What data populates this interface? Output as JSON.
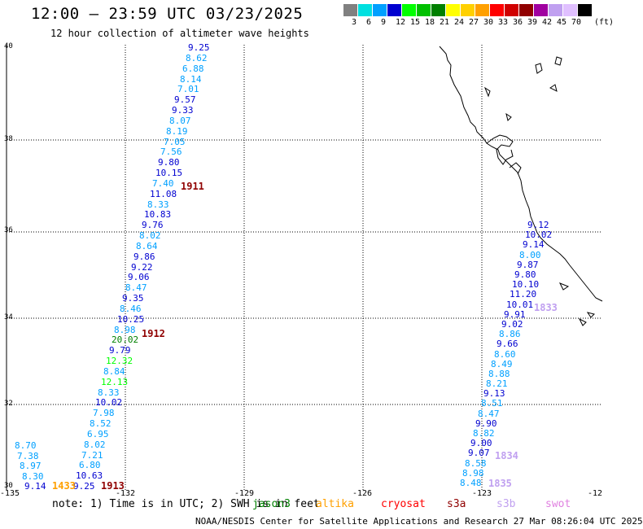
{
  "header": {
    "title": "12:00 – 23:59 UTC 03/23/2025",
    "subtitle": "12 hour collection of altimeter wave heights"
  },
  "colorbar": {
    "colors": [
      "#808080",
      "#00e0e0",
      "#00a0ff",
      "#0000d0",
      "#00ff00",
      "#00c000",
      "#008000",
      "#ffff00",
      "#ffd000",
      "#ffa000",
      "#ff0000",
      "#d00000",
      "#900000",
      "#a000a0",
      "#c0a0f0",
      "#e0c0ff",
      "#000000"
    ],
    "labels": [
      "3",
      "6",
      "9",
      "12",
      "15",
      "18",
      "21",
      "24",
      "27",
      "30",
      "33",
      "36",
      "39",
      "42",
      "45",
      "70",
      "(ft)"
    ]
  },
  "axes": {
    "lat_labels": [
      "40",
      "38",
      "36",
      "34",
      "32",
      "30"
    ],
    "lon_labels": [
      "-135",
      "-132",
      "-129",
      "-126",
      "-123",
      "-12"
    ]
  },
  "tracks": {
    "track1": {
      "values": [
        {
          "v": "9.25",
          "c": "#0000d0"
        },
        {
          "v": "8.62",
          "c": "#00a0ff"
        },
        {
          "v": "6.88",
          "c": "#00a0ff"
        },
        {
          "v": "8.14",
          "c": "#00a0ff"
        },
        {
          "v": "7.01",
          "c": "#00a0ff"
        },
        {
          "v": "9.57",
          "c": "#0000d0"
        },
        {
          "v": "9.33",
          "c": "#0000d0"
        },
        {
          "v": "8.07",
          "c": "#00a0ff"
        },
        {
          "v": "8.19",
          "c": "#00a0ff"
        },
        {
          "v": "7.05",
          "c": "#00a0ff"
        },
        {
          "v": "7.56",
          "c": "#00a0ff"
        },
        {
          "v": "9.80",
          "c": "#0000d0"
        },
        {
          "v": "10.15",
          "c": "#0000d0"
        },
        {
          "v": "7.40",
          "c": "#00a0ff"
        },
        {
          "v": "11.08",
          "c": "#0000d0"
        },
        {
          "v": "8.33",
          "c": "#00a0ff"
        },
        {
          "v": "10.83",
          "c": "#0000d0"
        },
        {
          "v": "9.76",
          "c": "#0000d0"
        },
        {
          "v": "8.02",
          "c": "#00a0ff"
        },
        {
          "v": "8.64",
          "c": "#00a0ff"
        },
        {
          "v": "9.86",
          "c": "#0000d0"
        },
        {
          "v": "9.22",
          "c": "#0000d0"
        },
        {
          "v": "9.06",
          "c": "#0000d0"
        },
        {
          "v": "8.47",
          "c": "#00a0ff"
        },
        {
          "v": "9.35",
          "c": "#0000d0"
        },
        {
          "v": "8.46",
          "c": "#00a0ff"
        },
        {
          "v": "10.25",
          "c": "#0000d0"
        },
        {
          "v": "8.98",
          "c": "#00a0ff"
        },
        {
          "v": "20.02",
          "c": "#008000"
        },
        {
          "v": "9.79",
          "c": "#0000d0"
        },
        {
          "v": "12.32",
          "c": "#00ff00"
        },
        {
          "v": "8.84",
          "c": "#00a0ff"
        },
        {
          "v": "12.13",
          "c": "#00ff00"
        },
        {
          "v": "8.33",
          "c": "#00a0ff"
        },
        {
          "v": "10.02",
          "c": "#0000d0"
        },
        {
          "v": "7.98",
          "c": "#00a0ff"
        },
        {
          "v": "8.52",
          "c": "#00a0ff"
        },
        {
          "v": "6.95",
          "c": "#00a0ff"
        },
        {
          "v": "8.02",
          "c": "#00a0ff"
        },
        {
          "v": "7.21",
          "c": "#00a0ff"
        },
        {
          "v": "6.80",
          "c": "#00a0ff"
        },
        {
          "v": "10.63",
          "c": "#0000d0"
        },
        {
          "v": "9.25",
          "c": "#0000d0"
        }
      ]
    },
    "track2": {
      "values": [
        {
          "v": "8.70",
          "c": "#00a0ff"
        },
        {
          "v": "7.38",
          "c": "#00a0ff"
        },
        {
          "v": "8.97",
          "c": "#00a0ff"
        },
        {
          "v": "8.30",
          "c": "#00a0ff"
        },
        {
          "v": "9.14",
          "c": "#0000d0"
        }
      ]
    },
    "track3": {
      "values": [
        {
          "v": "9.12",
          "c": "#0000d0"
        },
        {
          "v": "10.02",
          "c": "#0000d0"
        },
        {
          "v": "9.14",
          "c": "#0000d0"
        },
        {
          "v": "8.00",
          "c": "#00a0ff"
        },
        {
          "v": "9.87",
          "c": "#0000d0"
        },
        {
          "v": "9.80",
          "c": "#0000d0"
        },
        {
          "v": "10.10",
          "c": "#0000d0"
        },
        {
          "v": "11.20",
          "c": "#0000d0"
        },
        {
          "v": "10.01",
          "c": "#0000d0"
        },
        {
          "v": "9.91",
          "c": "#0000d0"
        },
        {
          "v": "9.02",
          "c": "#0000d0"
        },
        {
          "v": "8.86",
          "c": "#00a0ff"
        },
        {
          "v": "9.66",
          "c": "#0000d0"
        },
        {
          "v": "8.60",
          "c": "#00a0ff"
        },
        {
          "v": "8.49",
          "c": "#00a0ff"
        },
        {
          "v": "8.88",
          "c": "#00a0ff"
        },
        {
          "v": "8.21",
          "c": "#00a0ff"
        },
        {
          "v": "9.13",
          "c": "#0000d0"
        },
        {
          "v": "8.51",
          "c": "#00a0ff"
        },
        {
          "v": "8.47",
          "c": "#00a0ff"
        },
        {
          "v": "9.90",
          "c": "#0000d0"
        },
        {
          "v": "8.82",
          "c": "#00a0ff"
        },
        {
          "v": "9.00",
          "c": "#0000d0"
        },
        {
          "v": "9.07",
          "c": "#0000d0"
        },
        {
          "v": "8.58",
          "c": "#00a0ff"
        },
        {
          "v": "8.98",
          "c": "#00a0ff"
        },
        {
          "v": "8.48",
          "c": "#00a0ff"
        }
      ]
    }
  },
  "pass_labels": [
    {
      "text": "1911",
      "color": "#900000"
    },
    {
      "text": "1912",
      "color": "#900000"
    },
    {
      "text": "1913",
      "color": "#900000"
    },
    {
      "text": "1433",
      "color": "#ffa000"
    },
    {
      "text": "1833",
      "color": "#c0a0f0"
    },
    {
      "text": "1834",
      "color": "#c0a0f0"
    },
    {
      "text": "1835",
      "color": "#c0a0f0"
    }
  ],
  "footer": {
    "note": "note: 1) Time is in UTC; 2) SWH is in feet",
    "satellites": [
      {
        "name": "jason3",
        "color": "#008000"
      },
      {
        "name": "altika",
        "color": "#ffa000"
      },
      {
        "name": "cryosat",
        "color": "#ff0000"
      },
      {
        "name": "s3a",
        "color": "#900000"
      },
      {
        "name": "s3b",
        "color": "#c0a0f0"
      },
      {
        "name": "swot",
        "color": "#e080e0"
      }
    ],
    "credit": "NOAA/NESDIS Center for Satellite Applications and Research   27 Mar 08:26:04 UTC 2025"
  }
}
